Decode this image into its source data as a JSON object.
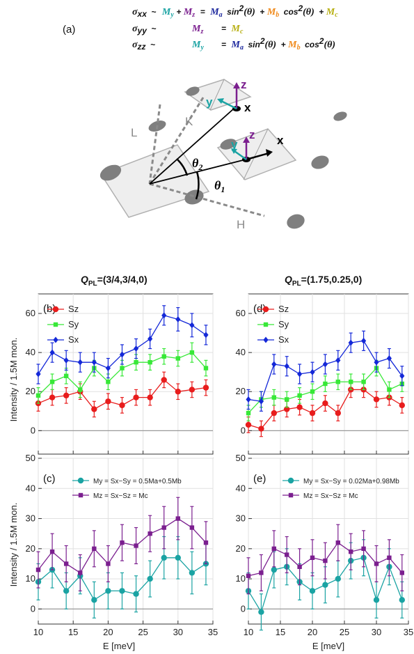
{
  "panel_a": {
    "label": "(a)",
    "sigma_xx": "σ",
    "sub_xx": "xx",
    "sub_yy": "yy",
    "sub_zz": "zz",
    "tilde": "~",
    "My": "M",
    "My_sub": "y",
    "Mz": "M",
    "Mz_sub": "z",
    "Ma": "M",
    "Ma_sub": "a",
    "Mb": "M",
    "Mb_sub": "b",
    "Mc": "M",
    "Mc_sub": "c",
    "sin": "sin",
    "cos": "cos",
    "theta": "(θ)",
    "sq": "2",
    "plus": "+",
    "eq": "=",
    "labels": {
      "L": "L",
      "K": "K",
      "H": "H",
      "theta1": "θ",
      "theta1_sub": "1",
      "theta2": "θ",
      "theta2_sub": "2",
      "x": "x",
      "y": "y",
      "z": "z"
    },
    "colors": {
      "My": "#1aa3a3",
      "Mz": "#7b1f8f",
      "Ma": "#1f2a9e",
      "Mb": "#f08a1c",
      "Mc": "#b8b015"
    }
  },
  "titles": {
    "left_Q": "Q",
    "left_sub": "PL",
    "left_value": "=(3/4,3/4,0)",
    "right_Q": "Q",
    "right_sub": "PL",
    "right_value": "=(1.75,0.25,0)"
  },
  "axes": {
    "ylabel": "Intensity / 1.5M mon.",
    "xlabel": "E [meV]"
  },
  "chart_data": [
    {
      "panel": "(b)",
      "type": "line",
      "x": [
        10,
        12,
        14,
        16,
        18,
        20,
        22,
        24,
        26,
        28,
        30,
        32,
        34
      ],
      "xlim": [
        10,
        35
      ],
      "ylim": [
        -12,
        70
      ],
      "yticks": [
        0,
        20,
        40,
        60
      ],
      "xticks": [
        10,
        15,
        20,
        25,
        30,
        35
      ],
      "series": [
        {
          "name": "Sz",
          "color": "#e81c1c",
          "marker": "circle",
          "values": [
            14,
            17,
            18,
            20,
            11,
            15,
            13,
            17,
            17,
            26,
            20,
            21,
            22
          ],
          "err": [
            4,
            4,
            4,
            4,
            4,
            4,
            4,
            4,
            4,
            4,
            4,
            4,
            4
          ]
        },
        {
          "name": "Sy",
          "color": "#38e838",
          "marker": "square",
          "values": [
            18,
            25,
            28,
            21,
            32,
            25,
            32,
            35,
            35,
            38,
            37,
            40,
            32
          ],
          "err": [
            4,
            4,
            4,
            4,
            4,
            4,
            4,
            4,
            4,
            4,
            4,
            5,
            4
          ]
        },
        {
          "name": "Sx",
          "color": "#1428d8",
          "marker": "diamond",
          "values": [
            29,
            40,
            36,
            35,
            35,
            32,
            39,
            42,
            47,
            59,
            57,
            54,
            49
          ],
          "err": [
            5,
            5,
            5,
            5,
            5,
            5,
            5,
            5,
            5,
            5,
            6,
            6,
            5
          ]
        }
      ]
    },
    {
      "panel": "(c)",
      "type": "line",
      "x": [
        10,
        12,
        14,
        16,
        18,
        20,
        22,
        24,
        26,
        28,
        30,
        32,
        34
      ],
      "xlim": [
        10,
        35
      ],
      "ylim": [
        -5,
        50
      ],
      "yticks": [
        0,
        10,
        20,
        30,
        40,
        50
      ],
      "xticks": [
        10,
        15,
        20,
        25,
        30,
        35
      ],
      "series": [
        {
          "name": "My = Sx−Sy = 0.5Ma+0.5Mb",
          "color": "#1aa3a3",
          "marker": "circle",
          "values": [
            9,
            13,
            6,
            11,
            3,
            6,
            6,
            5,
            10,
            17,
            17,
            12,
            15
          ],
          "err": [
            6,
            6,
            6,
            6,
            6,
            6,
            6,
            6,
            6,
            7,
            7,
            7,
            7
          ]
        },
        {
          "name": "Mz = Sx−Sz = Mc",
          "color": "#7b1f8f",
          "marker": "square",
          "values": [
            13,
            19,
            15,
            12,
            20,
            15,
            22,
            21,
            25,
            27,
            30,
            27,
            22
          ],
          "err": [
            6,
            6,
            6,
            6,
            6,
            6,
            6,
            6,
            6,
            7,
            7,
            7,
            7
          ]
        }
      ]
    },
    {
      "panel": "(d)",
      "type": "line",
      "x": [
        10,
        12,
        14,
        16,
        18,
        20,
        22,
        24,
        26,
        28,
        30,
        32,
        34
      ],
      "xlim": [
        10,
        35
      ],
      "ylim": [
        -12,
        70
      ],
      "yticks": [
        0,
        20,
        40,
        60
      ],
      "xticks": [
        10,
        15,
        20,
        25,
        30,
        35
      ],
      "series": [
        {
          "name": "Sz",
          "color": "#e81c1c",
          "marker": "circle",
          "values": [
            3,
            1,
            9,
            11,
            12,
            9,
            14,
            9,
            21,
            21,
            16,
            17,
            13
          ],
          "err": [
            4,
            4,
            4,
            4,
            4,
            4,
            4,
            4,
            4,
            4,
            4,
            4,
            4
          ]
        },
        {
          "name": "Sy",
          "color": "#38e838",
          "marker": "square",
          "values": [
            9,
            16,
            17,
            16,
            18,
            20,
            24,
            25,
            25,
            25,
            32,
            21,
            24
          ],
          "err": [
            4,
            4,
            4,
            4,
            4,
            4,
            4,
            4,
            4,
            4,
            4,
            4,
            4
          ]
        },
        {
          "name": "Sx",
          "color": "#1428d8",
          "marker": "diamond",
          "values": [
            16,
            15,
            34,
            33,
            29,
            30,
            34,
            36,
            45,
            46,
            35,
            37,
            28
          ],
          "err": [
            5,
            5,
            5,
            5,
            5,
            5,
            5,
            5,
            5,
            5,
            5,
            5,
            5
          ]
        }
      ]
    },
    {
      "panel": "(e)",
      "type": "line",
      "x": [
        10,
        12,
        14,
        16,
        18,
        20,
        22,
        24,
        26,
        28,
        30,
        32,
        34
      ],
      "xlim": [
        10,
        35
      ],
      "ylim": [
        -5,
        50
      ],
      "yticks": [
        0,
        10,
        20,
        30,
        40,
        50
      ],
      "xticks": [
        10,
        15,
        20,
        25,
        30,
        35
      ],
      "series": [
        {
          "name": "My = Sx−Sy = 0.02Ma+0.98Mb",
          "color": "#1aa3a3",
          "marker": "circle",
          "values": [
            6,
            -1,
            13,
            14,
            9,
            6,
            8,
            10,
            16,
            17,
            3,
            14,
            3
          ],
          "err": [
            6,
            6,
            6,
            6,
            6,
            6,
            6,
            6,
            6,
            6,
            6,
            6,
            6
          ]
        },
        {
          "name": "Mz = Sx−Sz = Mc",
          "color": "#7b1f8f",
          "marker": "square",
          "values": [
            11,
            12,
            20,
            18,
            14,
            17,
            16,
            22,
            19,
            20,
            15,
            17,
            12
          ],
          "err": [
            6,
            6,
            6,
            6,
            6,
            6,
            6,
            6,
            6,
            6,
            6,
            6,
            6
          ]
        }
      ]
    }
  ]
}
